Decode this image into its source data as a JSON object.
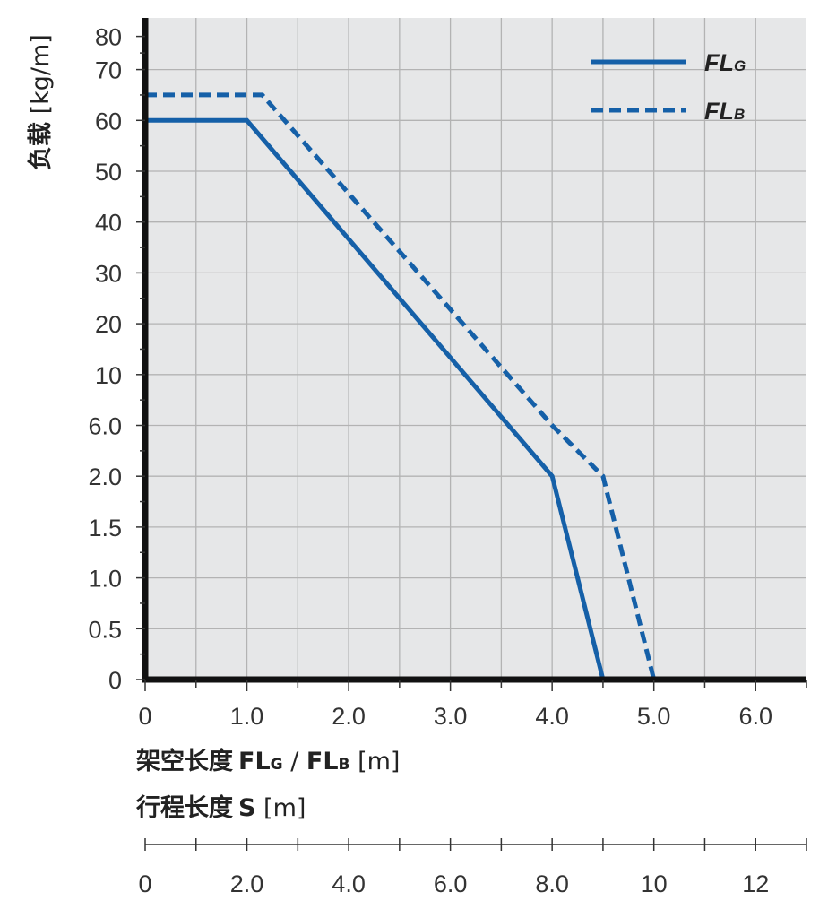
{
  "chart_data": {
    "type": "line",
    "plot_background": "#e6e7e8",
    "grid": true,
    "grid_color": "#b3b3b3",
    "line_color": "#1560a8",
    "legend_placement": "top-right",
    "x": {
      "label_main": "架空长度",
      "label_bold": "FL",
      "label_sub1": "G",
      "label_sep": " / ",
      "label_bold2": "FL",
      "label_sub2": "B",
      "label_unit": " [m]",
      "range": [
        0,
        6.5
      ],
      "ticks": [
        0,
        1.0,
        2.0,
        3.0,
        4.0,
        5.0,
        6.0
      ],
      "tick_labels": [
        "0",
        "1.0",
        "2.0",
        "3.0",
        "4.0",
        "5.0",
        "6.0"
      ]
    },
    "x2": {
      "label_main": "行程长度",
      "label_bold": "S",
      "label_unit": " [m]",
      "range": [
        0,
        13
      ],
      "ticks": [
        0,
        2.0,
        4.0,
        6.0,
        8.0,
        10,
        12
      ],
      "tick_labels": [
        "0",
        "2.0",
        "4.0",
        "6.0",
        "8.0",
        "10",
        "12"
      ]
    },
    "y": {
      "label_main": "负载",
      "label_unit": " [kg/m]",
      "scale": "piecewise",
      "ticks": [
        0,
        0.5,
        1.0,
        1.5,
        2.0,
        6.0,
        10,
        20,
        30,
        40,
        50,
        60,
        70,
        80
      ],
      "tick_labels": [
        "0",
        "0.5",
        "1.0",
        "1.5",
        "2.0",
        "6.0",
        "10",
        "20",
        "30",
        "40",
        "50",
        "60",
        "70",
        "80"
      ]
    },
    "series": [
      {
        "name": "FL",
        "sub": "G",
        "style": "solid",
        "points": [
          [
            0,
            60
          ],
          [
            1.0,
            60
          ],
          [
            4.0,
            2.0
          ],
          [
            4.5,
            0
          ]
        ]
      },
      {
        "name": "FL",
        "sub": "B",
        "style": "dashed",
        "points": [
          [
            0,
            65
          ],
          [
            1.15,
            65
          ],
          [
            4.0,
            6.0
          ],
          [
            4.5,
            2.0
          ],
          [
            5.0,
            0
          ]
        ]
      }
    ]
  }
}
